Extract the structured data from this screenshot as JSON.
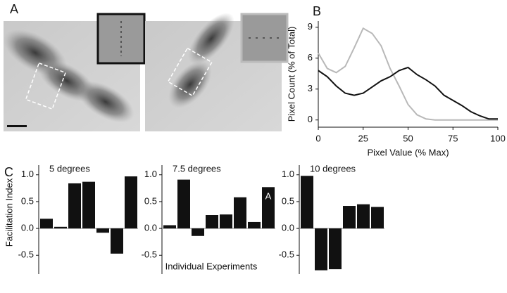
{
  "labels": {
    "panel_a": "A",
    "panel_b": "B",
    "panel_c": "C",
    "x_label": "Individual Experiments"
  },
  "chart_data": [
    {
      "type": "line",
      "x_label": "Pixel Value (% Max)",
      "y_label": "Pixel Count (% of Total)",
      "x": [
        0,
        5,
        10,
        15,
        20,
        25,
        30,
        35,
        40,
        45,
        50,
        55,
        60,
        65,
        70,
        75,
        80,
        85,
        90,
        95,
        100
      ],
      "series": [
        {
          "color": "#b8b8b8",
          "values": [
            6.5,
            5.0,
            4.6,
            5.2,
            7.0,
            8.9,
            8.4,
            7.2,
            5.0,
            3.3,
            1.5,
            0.5,
            0.1,
            0,
            0,
            0,
            0,
            0,
            0,
            0,
            0
          ]
        },
        {
          "color": "#111111",
          "values": [
            4.8,
            4.2,
            3.3,
            2.6,
            2.4,
            2.6,
            3.2,
            3.8,
            4.2,
            4.8,
            5.1,
            4.4,
            3.9,
            3.3,
            2.4,
            1.9,
            1.4,
            0.8,
            0.4,
            0.1,
            0.1
          ]
        }
      ],
      "xlim": [
        0,
        100
      ],
      "xticks": [
        0,
        25,
        50,
        75,
        100
      ],
      "ylim": [
        -0.7,
        9.6
      ],
      "yticks": [
        0,
        3,
        6,
        9
      ]
    },
    {
      "type": "bar",
      "title": "5 degrees",
      "y_label": "Facilitation Index",
      "color": "#111111",
      "values": [
        0.18,
        0.03,
        0.84,
        0.87,
        -0.08,
        -0.47,
        0.97
      ],
      "ylim": [
        -0.85,
        1.18
      ],
      "yticks": [
        -0.5,
        {
          "value": 0,
          "label": "0.0"
        },
        0.5,
        {
          "value": 1,
          "label": "1.0"
        }
      ]
    },
    {
      "type": "bar",
      "title": "7.5 degrees",
      "color": "#111111",
      "values": [
        0.06,
        0.91,
        -0.14,
        0.25,
        0.26,
        0.58,
        0.12,
        0.77
      ],
      "bar_labels": [
        null,
        null,
        null,
        null,
        null,
        null,
        null,
        "A"
      ],
      "ylim": [
        -0.85,
        1.18
      ],
      "yticks": [
        -0.5,
        {
          "value": 0,
          "label": "0.0"
        },
        0.5,
        {
          "value": 1,
          "label": "1.0"
        }
      ]
    },
    {
      "type": "bar",
      "title": "10 degrees",
      "color": "#111111",
      "values": [
        0.98,
        -0.78,
        -0.76,
        0.42,
        0.45,
        0.4
      ],
      "ylim": [
        -0.85,
        1.18
      ],
      "yticks": [
        -0.5,
        {
          "value": 0,
          "label": "0.0"
        },
        0.5,
        {
          "value": 1,
          "label": "1.0"
        }
      ]
    }
  ]
}
